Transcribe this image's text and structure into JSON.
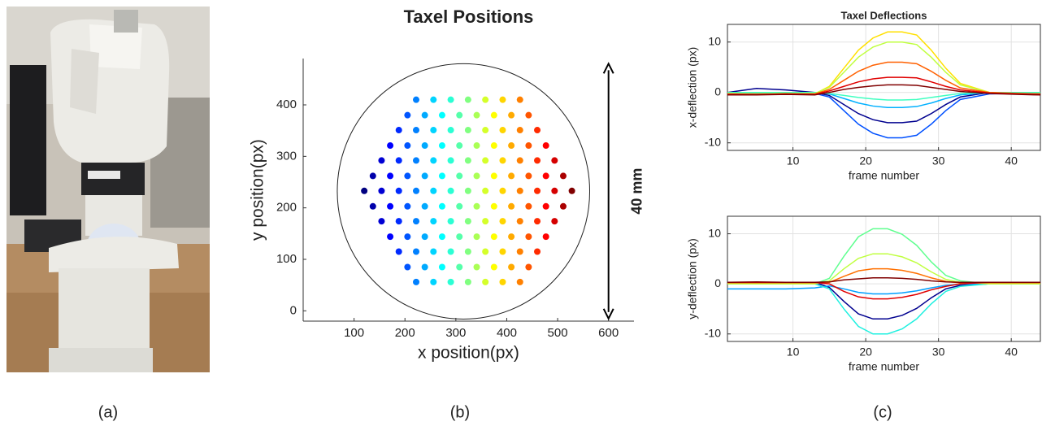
{
  "panel_labels": [
    "(a)",
    "(b)",
    "(c)"
  ],
  "chart_data": [
    {
      "type": "scatter",
      "title": "Taxel Positions",
      "x_label": "x position(px)",
      "y_label": "y position(px)",
      "colormap": "jet",
      "x": [
        222,
        256,
        290,
        324,
        358,
        392,
        426,
        205,
        239,
        273,
        307,
        341,
        375,
        409,
        443,
        188,
        222,
        256,
        290,
        324,
        358,
        392,
        426,
        460,
        171,
        205,
        239,
        273,
        307,
        341,
        375,
        409,
        443,
        477,
        154,
        188,
        222,
        256,
        290,
        324,
        358,
        392,
        426,
        460,
        494,
        137,
        171,
        205,
        239,
        273,
        307,
        341,
        375,
        409,
        443,
        477,
        511,
        120,
        154,
        188,
        222,
        256,
        290,
        324,
        358,
        392,
        426,
        460,
        494,
        528,
        137,
        171,
        205,
        239,
        273,
        307,
        341,
        375,
        409,
        443,
        477,
        511,
        154,
        188,
        222,
        256,
        290,
        324,
        358,
        392,
        426,
        460,
        494,
        171,
        205,
        239,
        273,
        307,
        341,
        375,
        409,
        443,
        477,
        188,
        222,
        256,
        290,
        324,
        358,
        392,
        426,
        460,
        205,
        239,
        273,
        307,
        341,
        375,
        409,
        443,
        222,
        256,
        290,
        324,
        358,
        392,
        426
      ],
      "y": [
        410,
        410,
        410,
        410,
        410,
        410,
        410,
        380,
        380,
        380,
        380,
        380,
        380,
        380,
        380,
        351,
        351,
        351,
        351,
        351,
        351,
        351,
        351,
        351,
        321,
        321,
        321,
        321,
        321,
        321,
        321,
        321,
        321,
        321,
        292,
        292,
        292,
        292,
        292,
        292,
        292,
        292,
        292,
        292,
        292,
        262,
        262,
        262,
        262,
        262,
        262,
        262,
        262,
        262,
        262,
        262,
        262,
        233,
        233,
        233,
        233,
        233,
        233,
        233,
        233,
        233,
        233,
        233,
        233,
        233,
        203,
        203,
        203,
        203,
        203,
        203,
        203,
        203,
        203,
        203,
        203,
        203,
        174,
        174,
        174,
        174,
        174,
        174,
        174,
        174,
        174,
        174,
        174,
        144,
        144,
        144,
        144,
        144,
        144,
        144,
        144,
        144,
        144,
        115,
        115,
        115,
        115,
        115,
        115,
        115,
        115,
        115,
        85,
        85,
        85,
        85,
        85,
        85,
        85,
        85,
        56,
        56,
        56,
        56,
        56,
        56,
        56
      ],
      "circle": {
        "cx": 315,
        "cy": 232,
        "r": 248
      },
      "arrow": {
        "x": 600,
        "y": [
          -15,
          480
        ],
        "label": "40 mm"
      },
      "xlim": [
        0,
        650
      ],
      "ylim": [
        -20,
        490
      ],
      "xticks": [
        100,
        200,
        300,
        400,
        500,
        600
      ],
      "yticks": [
        0,
        100,
        200,
        300,
        400
      ],
      "grid": false
    },
    {
      "type": "line",
      "title": "Taxel Deflections",
      "x_label": "frame number",
      "y_label": "x-deflection (px)",
      "x": [
        1,
        5,
        9,
        13,
        15,
        17,
        19,
        21,
        23,
        25,
        27,
        29,
        31,
        33,
        37,
        41,
        44
      ],
      "series": [
        {
          "color": "#00008f",
          "values": [
            0,
            0.8,
            0.5,
            0,
            -0.6,
            -2.4,
            -4.2,
            -5.4,
            -6,
            -6,
            -5.7,
            -4.2,
            -2.4,
            -0.9,
            0,
            0,
            0
          ]
        },
        {
          "color": "#0050ff",
          "values": [
            -0.3,
            -0.2,
            -0.3,
            -0.2,
            -0.9,
            -3.6,
            -6.3,
            -8.1,
            -9,
            -9,
            -8.5,
            -6.3,
            -3.6,
            -1.4,
            -0.3,
            -0.2,
            -0.3
          ]
        },
        {
          "color": "#00b0ff",
          "values": [
            0,
            0,
            0,
            0,
            -0.3,
            -1.2,
            -2.1,
            -2.7,
            -3,
            -3,
            -2.8,
            -2.1,
            -1.2,
            -0.5,
            0,
            0,
            0
          ]
        },
        {
          "color": "#40ffc0",
          "values": [
            0,
            0,
            0,
            0,
            -0.2,
            -0.6,
            -1,
            -1.3,
            -1.5,
            -1.5,
            -1.4,
            -1,
            -0.6,
            -0.2,
            0,
            0,
            0
          ]
        },
        {
          "color": "#ffe000",
          "values": [
            -0.3,
            -0.3,
            -0.2,
            -0.3,
            1.2,
            4.8,
            8.4,
            10.8,
            12,
            12,
            11.4,
            8.4,
            4.8,
            1.8,
            0,
            -0.2,
            -0.3
          ]
        },
        {
          "color": "#c0ff40",
          "values": [
            -0.2,
            -0.3,
            -0.2,
            -0.2,
            1,
            4,
            7,
            9,
            10,
            10,
            9.5,
            7,
            4,
            1.5,
            0,
            -0.2,
            -0.3
          ]
        },
        {
          "color": "#ff6000",
          "values": [
            -0.3,
            -0.4,
            -0.3,
            -0.3,
            0.6,
            2.4,
            4.2,
            5.4,
            6,
            6,
            5.7,
            4.2,
            2.4,
            0.9,
            0,
            -0.2,
            -0.3
          ]
        },
        {
          "color": "#e00000",
          "values": [
            -0.4,
            -0.4,
            -0.3,
            -0.4,
            0.3,
            1.2,
            2.1,
            2.7,
            3,
            3,
            2.9,
            2.1,
            1.2,
            0.5,
            -0.1,
            -0.3,
            -0.4
          ]
        },
        {
          "color": "#800000",
          "values": [
            -0.5,
            -0.5,
            -0.4,
            -0.5,
            0,
            0.6,
            1,
            1.3,
            1.5,
            1.5,
            1.4,
            1,
            0.6,
            0.2,
            -0.2,
            -0.4,
            -0.5
          ]
        }
      ],
      "xlim": [
        1,
        44
      ],
      "ylim": [
        -11.5,
        13.5
      ],
      "xticks": [
        10,
        20,
        30,
        40
      ],
      "yticks": [
        -10,
        0,
        10
      ],
      "grid": true
    },
    {
      "type": "line",
      "x_label": "frame number",
      "y_label": "y-deflection (px)",
      "x": [
        1,
        5,
        9,
        13,
        15,
        17,
        19,
        21,
        23,
        25,
        27,
        29,
        31,
        33,
        37,
        41,
        44
      ],
      "series": [
        {
          "color": "#00008f",
          "values": [
            0,
            0,
            0,
            0.3,
            -0.7,
            -3.5,
            -6,
            -7,
            -7,
            -6.3,
            -4.9,
            -2.8,
            -1,
            -0.3,
            0,
            0,
            0
          ]
        },
        {
          "color": "#00a0ff",
          "values": [
            -1,
            -1,
            -1,
            -0.8,
            -0.4,
            -1,
            -1.7,
            -2,
            -2,
            -1.8,
            -1.4,
            -0.8,
            -0.3,
            -0.1,
            0,
            0,
            0
          ]
        },
        {
          "color": "#20f0e0",
          "values": [
            0,
            0,
            0,
            0,
            -1,
            -5,
            -8.5,
            -10,
            -10,
            -9,
            -7,
            -4,
            -1.5,
            -0.5,
            0,
            0,
            0
          ]
        },
        {
          "color": "#60ff90",
          "values": [
            0,
            0,
            0,
            0,
            1.1,
            5.5,
            9.4,
            11,
            11,
            9.9,
            7.7,
            4.4,
            1.7,
            0.6,
            0,
            0,
            0
          ]
        },
        {
          "color": "#c0ff40",
          "values": [
            0,
            0,
            0,
            0,
            0.6,
            3,
            5.1,
            6,
            6,
            5.4,
            4.2,
            2.4,
            0.9,
            0.3,
            0,
            0,
            0
          ]
        },
        {
          "color": "#ff7000",
          "values": [
            0.2,
            0.2,
            0.2,
            0.2,
            0.3,
            1.5,
            2.6,
            3,
            3,
            2.7,
            2.1,
            1.2,
            0.5,
            0.2,
            0.2,
            0.2,
            0.2
          ]
        },
        {
          "color": "#e00000",
          "values": [
            0.3,
            0.3,
            0.3,
            0.3,
            0,
            -1.5,
            -2.6,
            -3,
            -3,
            -2.7,
            -2.1,
            -1.2,
            -0.5,
            0,
            0.3,
            0.3,
            0.3
          ]
        },
        {
          "color": "#800000",
          "values": [
            0.3,
            0.4,
            0.3,
            0.3,
            0.4,
            0.8,
            1,
            1.2,
            1.2,
            1.1,
            0.9,
            0.6,
            0.4,
            0.3,
            0.3,
            0.3,
            0.3
          ]
        }
      ],
      "xlim": [
        1,
        44
      ],
      "ylim": [
        -11.5,
        13.5
      ],
      "xticks": [
        10,
        20,
        30,
        40
      ],
      "yticks": [
        -10,
        0,
        10
      ],
      "grid": true
    }
  ]
}
